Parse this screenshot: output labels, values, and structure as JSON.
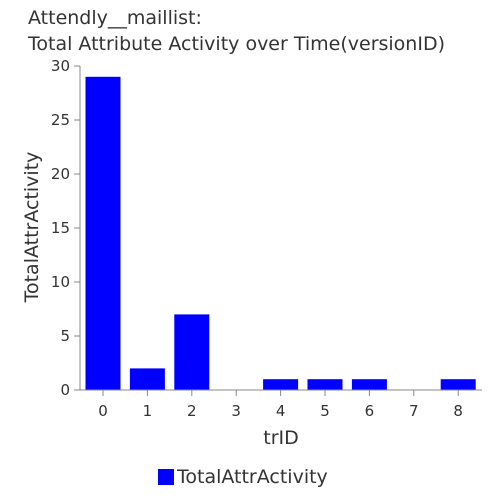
{
  "colors": {
    "bar": "#0000ff",
    "axis": "#888888",
    "text": "#333333"
  },
  "chart_data": {
    "type": "bar",
    "title": [
      "Attendly__maillist:",
      "Total Attribute Activity over Time(versionID)"
    ],
    "xlabel": "trID",
    "ylabel": "TotalAttrActivity",
    "categories": [
      "0",
      "1",
      "2",
      "3",
      "4",
      "5",
      "6",
      "7",
      "8"
    ],
    "series": [
      {
        "name": "TotalAttrActivity",
        "values": [
          29,
          2,
          7,
          0,
          1,
          1,
          1,
          0,
          1
        ]
      }
    ],
    "ylim": [
      0,
      30
    ],
    "yticks": [
      "0",
      "5",
      "10",
      "15",
      "20",
      "25",
      "30"
    ],
    "grid": false,
    "legend": "bottom"
  }
}
